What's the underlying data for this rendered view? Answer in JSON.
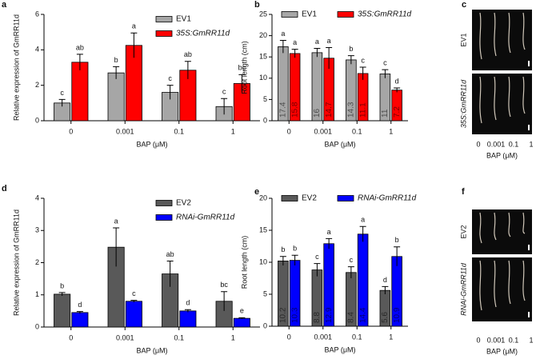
{
  "chart_data": [
    {
      "type": "bar",
      "panel": "a",
      "y_label": "Relative expression of GmRR11d",
      "x_label": "BAP (μM)",
      "categories": [
        "0",
        "0.001",
        "0.1",
        "1"
      ],
      "ylim": [
        0,
        6
      ],
      "yticks": [
        0,
        2,
        4,
        6
      ],
      "legend": "upper right",
      "series": [
        {
          "name": "EV1",
          "color": "#a6a6a6",
          "values": [
            1.0,
            2.7,
            1.6,
            0.8
          ],
          "errors": [
            0.2,
            0.35,
            0.4,
            0.45
          ],
          "letters": [
            "c",
            "b",
            "c",
            "c"
          ]
        },
        {
          "name": "35S:GmRR11d",
          "color": "#ff0000",
          "values": [
            3.3,
            4.25,
            2.85,
            2.1
          ],
          "errors": [
            0.45,
            0.7,
            0.5,
            0.5
          ],
          "letters": [
            "ab",
            "a",
            "ab",
            "bc"
          ]
        }
      ]
    },
    {
      "type": "bar",
      "panel": "b",
      "y_label": "Root length (cm)",
      "x_label": "BAP (μM)",
      "categories": [
        "0",
        "0.001",
        "0.1",
        "1"
      ],
      "ylim": [
        0,
        25
      ],
      "yticks": [
        0,
        5,
        10,
        15,
        20,
        25
      ],
      "legend": "top",
      "series": [
        {
          "name": "EV1",
          "color": "#a6a6a6",
          "values": [
            17.4,
            16,
            14.3,
            11
          ],
          "errors": [
            1.5,
            1,
            1,
            1
          ],
          "letters": [
            "a",
            "a",
            "b",
            "c"
          ]
        },
        {
          "name": "35S:GmRR11d",
          "color": "#ff0000",
          "values": [
            15.8,
            14.7,
            11.1,
            7.2
          ],
          "errors": [
            1,
            2.5,
            1.5,
            0.5
          ],
          "letters": [
            "a",
            "a",
            "c",
            "d"
          ]
        }
      ]
    },
    {
      "type": "image",
      "panel": "c",
      "row_labels": [
        "EV1",
        "35S:GmRR11d"
      ],
      "categories": [
        "0",
        "0.001",
        "0.1",
        "1"
      ],
      "x_label": "BAP (μM)"
    },
    {
      "type": "bar",
      "panel": "d",
      "y_label": "Relative expression of GmRR11d",
      "x_label": "BAP (μM)",
      "categories": [
        "0",
        "0.001",
        "0.1",
        "1"
      ],
      "ylim": [
        0,
        4
      ],
      "yticks": [
        0,
        1,
        2,
        3,
        4
      ],
      "legend": "upper right",
      "series": [
        {
          "name": "EV2",
          "color": "#595959",
          "values": [
            1.02,
            2.48,
            1.65,
            0.8
          ],
          "errors": [
            0.05,
            0.6,
            0.4,
            0.3
          ],
          "letters": [
            "b",
            "a",
            "ab",
            "bc"
          ]
        },
        {
          "name": "RNAi-GmRR11d",
          "color": "#0000ff",
          "values": [
            0.45,
            0.8,
            0.5,
            0.27
          ],
          "errors": [
            0.03,
            0.03,
            0.04,
            0.02
          ],
          "letters": [
            "d",
            "c",
            "d",
            "e"
          ]
        }
      ]
    },
    {
      "type": "bar",
      "panel": "e",
      "y_label": "Root length (cm)",
      "x_label": "BAP (μM)",
      "categories": [
        "0",
        "0.001",
        "0.1",
        "1"
      ],
      "ylim": [
        0,
        20
      ],
      "yticks": [
        0,
        5,
        10,
        15,
        20
      ],
      "legend": "top",
      "series": [
        {
          "name": "EV2",
          "color": "#595959",
          "values": [
            10.2,
            8.8,
            8.4,
            5.6
          ],
          "errors": [
            0.7,
            1,
            0.9,
            0.6
          ],
          "letters": [
            "b",
            "c",
            "c",
            "d"
          ]
        },
        {
          "name": "RNAi-GmRR11d",
          "color": "#0000ff",
          "values": [
            10.3,
            12.9,
            14.4,
            10.9
          ],
          "errors": [
            0.8,
            0.8,
            1.2,
            1.5
          ],
          "letters": [
            "b",
            "a",
            "a",
            "b"
          ]
        }
      ]
    },
    {
      "type": "image",
      "panel": "f",
      "row_labels": [
        "EV2",
        "RNAi-GmRR11d"
      ],
      "categories": [
        "0",
        "0.001",
        "0.1",
        "1"
      ],
      "x_label": "BAP (μM)"
    }
  ]
}
